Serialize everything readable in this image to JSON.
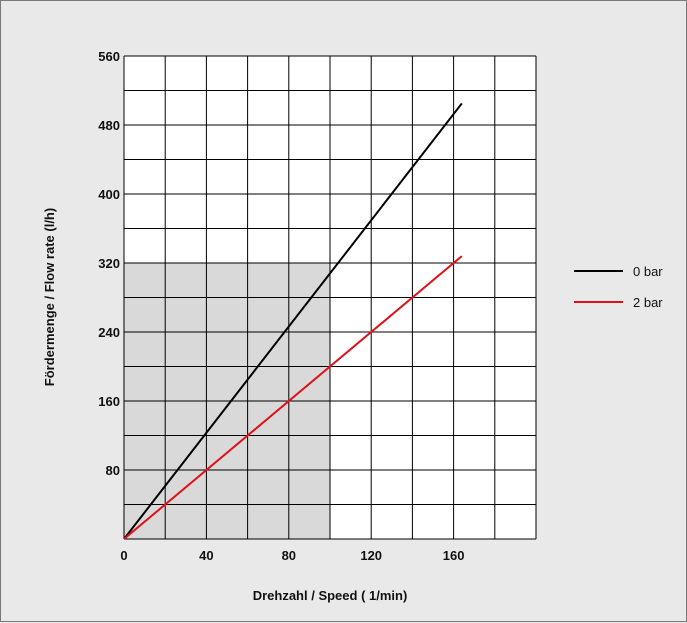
{
  "chart_data": {
    "type": "line",
    "title": "",
    "xlabel": "Drehzahl / Speed ( 1/min)",
    "ylabel": "Fördermenge / Flow rate (l/h)",
    "xlim": [
      0,
      200
    ],
    "ylim": [
      0,
      560
    ],
    "x_ticks": [
      0,
      40,
      80,
      120,
      160
    ],
    "x_tick_labels": [
      "0",
      "40",
      "80",
      "120",
      "160"
    ],
    "y_ticks": [
      80,
      160,
      240,
      320,
      400,
      480,
      560
    ],
    "y_tick_labels": [
      "80",
      "160",
      "240",
      "320",
      "400",
      "480",
      "560"
    ],
    "grid": true,
    "legend_position": "right",
    "shaded_region": {
      "x": [
        0,
        100
      ],
      "y": [
        0,
        320
      ],
      "color": "#d9d9d9"
    },
    "series": [
      {
        "name": "0 bar",
        "color": "#000000",
        "x": [
          0,
          164
        ],
        "y": [
          0,
          505
        ]
      },
      {
        "name": "2 bar",
        "color": "#e0101a",
        "x": [
          0,
          164
        ],
        "y": [
          0,
          328
        ]
      }
    ]
  }
}
